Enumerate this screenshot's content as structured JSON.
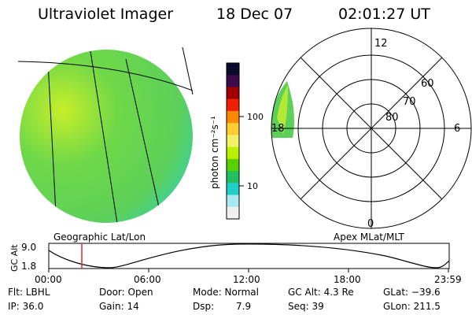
{
  "header": {
    "title": "Ultraviolet Imager",
    "date": "18 Dec 07",
    "time": "02:01:27 UT"
  },
  "colorbar": {
    "unit_label": "photon cm⁻²s⁻¹",
    "ticks": [
      "100",
      "10"
    ],
    "colors": [
      "#0a0a2a",
      "#3a0a4a",
      "#a00000",
      "#f02000",
      "#ff8800",
      "#ffcc33",
      "#f5f06a",
      "#b8f000",
      "#58d000",
      "#20c060",
      "#20d0c8",
      "#a8e8f0",
      "#f0f0f0"
    ]
  },
  "left_panel": {
    "caption": "Geographic Lat/Lon",
    "disk_colors": {
      "fill": "#5cd05a",
      "edge": "#2fd0b8",
      "highlight": "#c8ef2a"
    }
  },
  "right_panel": {
    "caption": "Apex MLat/MLT",
    "mlt_labels": [
      "12",
      "18",
      "6",
      "0"
    ],
    "mlat_labels": [
      "60",
      "70",
      "80"
    ]
  },
  "timeline": {
    "axis_title": "GC Alt",
    "y_ticks": [
      "9.0",
      "1.8"
    ],
    "x_ticks": [
      "00:00",
      "06:00",
      "12:00",
      "18:00",
      "23:59"
    ],
    "marker_time": "02:01",
    "marker_color": "#d03030"
  },
  "info": {
    "flt": "Flt: LBHL",
    "ip": "IP: 36.0",
    "door": "Door: Open",
    "gain": "Gain: 14",
    "mode": "Mode: Normal",
    "dsp_label": "Dsp:",
    "dsp_value": "7.9",
    "gcalt": "GC Alt: 4.3 Re",
    "seq": "Seq: 39",
    "glat": "GLat: −39.6",
    "glon": "GLon: 211.5"
  }
}
